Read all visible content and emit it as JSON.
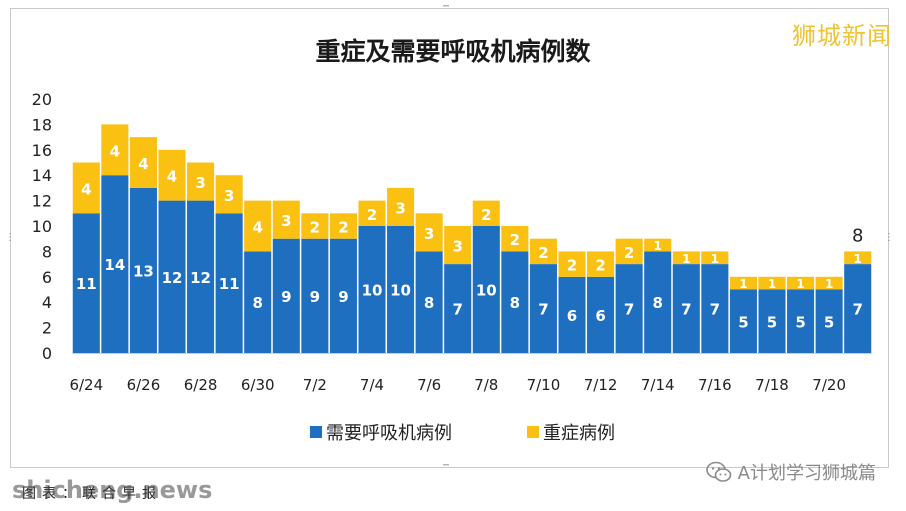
{
  "watermark": "狮城新闻",
  "footer": {
    "caption": "图表：联合早报",
    "site": "shicheng.news",
    "credit": "A计划学习狮城篇"
  },
  "colors": {
    "ventilator": "#1f6fc1",
    "severe": "#fbc112",
    "axis": "#d0d0d0"
  },
  "chart_data": {
    "type": "bar",
    "stacked": true,
    "title": "重症及需要呼吸机病例数",
    "ylim": [
      0,
      20
    ],
    "yticks": [
      0,
      2,
      4,
      6,
      8,
      10,
      12,
      14,
      16,
      18,
      20
    ],
    "grid": false,
    "legend_position": "bottom",
    "categories": [
      "6/24",
      "6/25",
      "6/26",
      "6/27",
      "6/28",
      "6/29",
      "6/30",
      "7/1",
      "7/2",
      "7/3",
      "7/4",
      "7/5",
      "7/6",
      "7/7",
      "7/8",
      "7/9",
      "7/10",
      "7/11",
      "7/12",
      "7/13",
      "7/14",
      "7/15",
      "7/16",
      "7/17",
      "7/18",
      "7/19",
      "7/20",
      "7/21"
    ],
    "tick_labels": [
      "6/24",
      "",
      "6/26",
      "",
      "6/28",
      "",
      "6/30",
      "",
      "7/2",
      "",
      "7/4",
      "",
      "7/6",
      "",
      "7/8",
      "",
      "7/10",
      "",
      "7/12",
      "",
      "7/14",
      "",
      "7/16",
      "",
      "7/18",
      "",
      "7/20",
      ""
    ],
    "series": [
      {
        "name": "需要呼吸机病例",
        "values": [
          11,
          14,
          13,
          12,
          12,
          11,
          8,
          9,
          9,
          9,
          10,
          10,
          8,
          7,
          10,
          8,
          7,
          6,
          6,
          7,
          8,
          7,
          7,
          5,
          5,
          5,
          5,
          7
        ]
      },
      {
        "name": "重症病例",
        "values": [
          4,
          4,
          4,
          4,
          3,
          3,
          4,
          3,
          2,
          2,
          2,
          3,
          3,
          3,
          2,
          2,
          2,
          2,
          2,
          2,
          1,
          1,
          1,
          1,
          1,
          1,
          1,
          1
        ]
      }
    ],
    "annotations": [
      {
        "category": "7/21",
        "text": "8"
      }
    ]
  }
}
